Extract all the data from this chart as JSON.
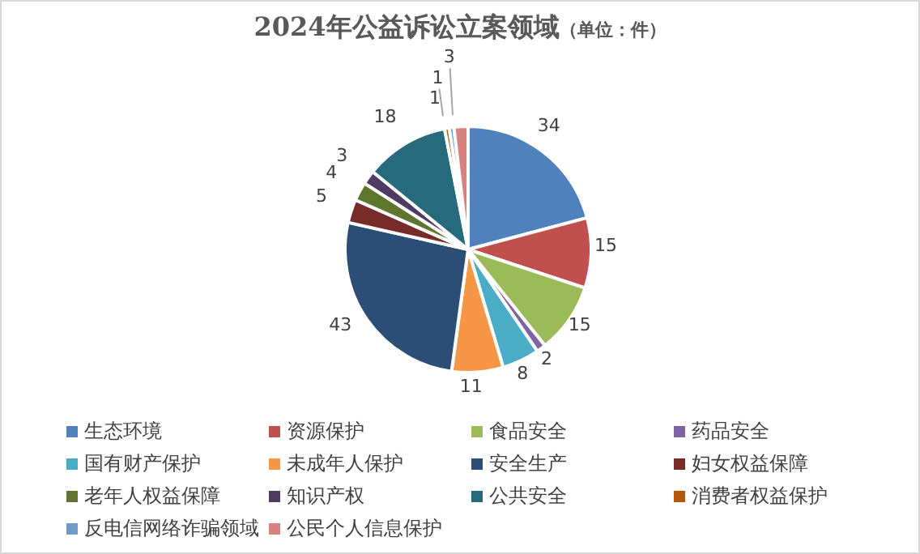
{
  "chart_data": {
    "type": "pie",
    "title": "2024年公益诉讼立案领域",
    "subtitle": "（单位：件）",
    "categories": [
      "生态环境",
      "资源保护",
      "食品安全",
      "药品安全",
      "国有财产保护",
      "未成年人保护",
      "安全生产",
      "妇女权益保障",
      "老年人权益保障",
      "知识产权",
      "公共安全",
      "消费者权益保护",
      "反电信网络诈骗领域",
      "公民个人信息保护"
    ],
    "values": [
      34,
      15,
      15,
      2,
      8,
      11,
      43,
      5,
      4,
      3,
      18,
      1,
      1,
      3
    ],
    "colors": [
      "#4f81bd",
      "#c0504d",
      "#9bbb59",
      "#8064a2",
      "#4bacc6",
      "#f79646",
      "#2c4d75",
      "#772c2a",
      "#5f7530",
      "#4d3b62",
      "#276a7c",
      "#b65708",
      "#729aca",
      "#d9817e"
    ],
    "data_labels": true,
    "legend": "bottom"
  }
}
